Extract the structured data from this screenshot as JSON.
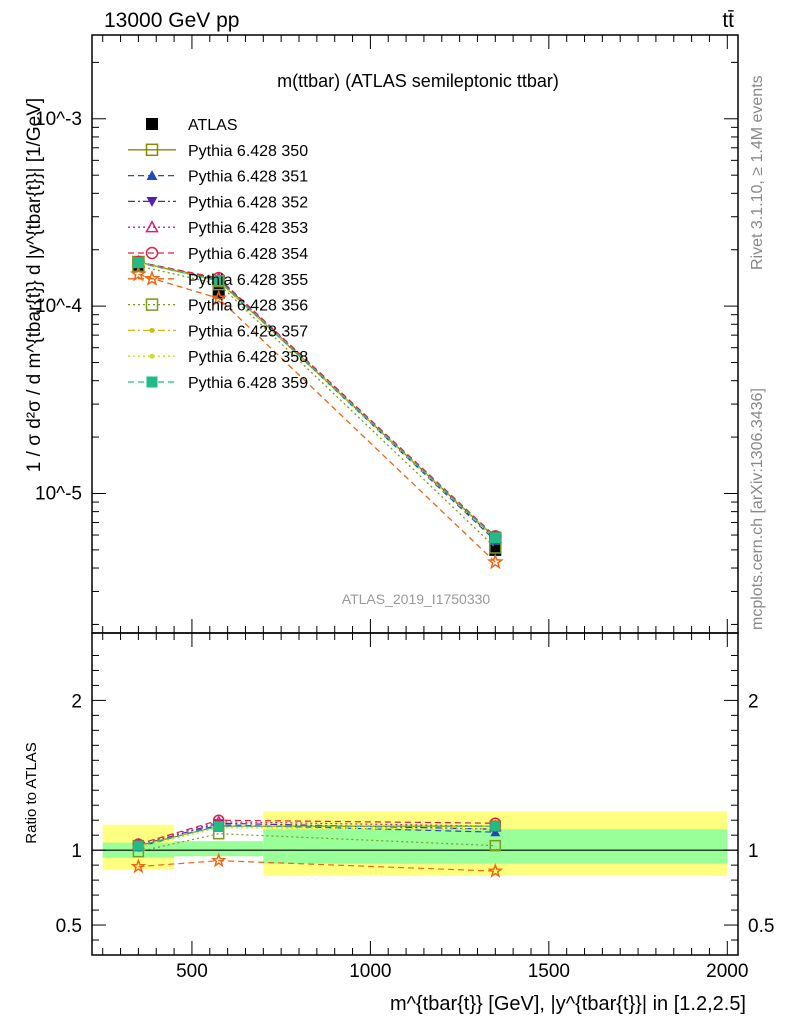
{
  "header": {
    "energy_label": "13000 GeV pp",
    "process_label": "tt̄"
  },
  "side_labels": {
    "rivet": "Rivet 3.1.10, ≥ 1.4M events",
    "mcplots": "mcplots.cern.ch [arXiv:1306.3436]"
  },
  "colors": {
    "ratio_band_inner": "#99ff99",
    "ratio_band_outer": "#ffff80",
    "watermark": "#999999"
  },
  "chart_data": [
    {
      "type": "line",
      "panel": "main",
      "title": "m(ttbar) (ATLAS semileptonic ttbar)",
      "watermark": "ATLAS_2019_I1750330",
      "ylabel": "1 / σ d²σ / d m^{tbar{t}} d |y^{tbar{t}}| [1/GeV]",
      "yscale": "log",
      "ylim": [
        1.8e-06,
        0.0028
      ],
      "xlim": [
        220,
        2030
      ],
      "y_tick_labels": [
        "10^-5",
        "10^-4",
        "10^-3"
      ],
      "legend_position": "top-left",
      "x": [
        350,
        575,
        1350
      ],
      "series": [
        {
          "name": "ATLAS",
          "color": "#000000",
          "marker": "filled-square",
          "line": "none",
          "values": [
            0.000166,
            0.000118,
            5e-06
          ]
        },
        {
          "name": "Pythia 6.428 350",
          "color": "#8a8a00",
          "marker": "open-square",
          "line": "solid",
          "values": [
            0.000172,
            0.000136,
            5.8e-06
          ]
        },
        {
          "name": "Pythia 6.428 351",
          "color": "#1f4fb4",
          "marker": "filled-triangle-up",
          "line": "dashed",
          "values": [
            0.00017,
            0.000138,
            5.6e-06
          ]
        },
        {
          "name": "Pythia 6.428 352",
          "color": "#5522aa",
          "marker": "filled-triangle-down",
          "line": "dashdot",
          "values": [
            0.000171,
            0.000139,
            5.7e-06
          ]
        },
        {
          "name": "Pythia 6.428 353",
          "color": "#cc2288",
          "marker": "open-triangle-up",
          "line": "dotted",
          "values": [
            0.000172,
            0.00014,
            5.8e-06
          ]
        },
        {
          "name": "Pythia 6.428 354",
          "color": "#dd2244",
          "marker": "open-circle",
          "line": "dashed",
          "values": [
            0.000172,
            0.000141,
            5.9e-06
          ]
        },
        {
          "name": "Pythia 6.428 355",
          "color": "#ee6611",
          "marker": "open-star",
          "line": "dashed",
          "values": [
            0.000148,
            0.00011,
            4.3e-06
          ]
        },
        {
          "name": "Pythia 6.428 356",
          "color": "#7a9a22",
          "marker": "open-square",
          "line": "dotted",
          "values": [
            0.000164,
            0.000131,
            5.15e-06
          ]
        },
        {
          "name": "Pythia 6.428 357",
          "color": "#ccbb11",
          "marker": "dot",
          "line": "dashdot",
          "values": [
            0.000172,
            0.000137,
            5.8e-06
          ]
        },
        {
          "name": "Pythia 6.428 358",
          "color": "#ccdd22",
          "marker": "dot",
          "line": "dotted",
          "values": [
            0.00017,
            0.000136,
            5.7e-06
          ]
        },
        {
          "name": "Pythia 6.428 359",
          "color": "#22bb88",
          "marker": "filled-square",
          "line": "dashed",
          "values": [
            0.000171,
            0.000137,
            5.8e-06
          ]
        }
      ]
    },
    {
      "type": "line",
      "panel": "ratio",
      "ylabel": "Ratio to ATLAS",
      "xlabel": "m^{tbar{t}} [GeV], |y^{tbar{t}}| in [1.2,2.5]",
      "ylim": [
        0.3,
        2.45
      ],
      "xlim": [
        220,
        2030
      ],
      "y_ticks": [
        0.5,
        1,
        2
      ],
      "y_tick_labels": [
        "0.5",
        "1",
        "2"
      ],
      "x_ticks": [
        500,
        1000,
        1500,
        2000
      ],
      "x_tick_labels": [
        "500",
        "1000",
        "1500",
        "2000"
      ],
      "reference_line": 1,
      "bins": [
        {
          "x_low": 250,
          "x_high": 450,
          "inner": [
            0.95,
            1.05
          ],
          "outer": [
            0.87,
            1.17
          ]
        },
        {
          "x_low": 450,
          "x_high": 700,
          "inner": [
            0.96,
            1.06
          ],
          "outer": [
            0.96,
            1.06
          ]
        },
        {
          "x_low": 700,
          "x_high": 2000,
          "inner": [
            0.91,
            1.14
          ],
          "outer": [
            0.83,
            1.26
          ]
        }
      ],
      "x": [
        350,
        575,
        1350
      ],
      "series": [
        {
          "name": "Pythia 6.428 350",
          "values": [
            1.03,
            1.16,
            1.16
          ]
        },
        {
          "name": "Pythia 6.428 351",
          "values": [
            1.02,
            1.17,
            1.12
          ]
        },
        {
          "name": "Pythia 6.428 352",
          "values": [
            1.03,
            1.18,
            1.14
          ]
        },
        {
          "name": "Pythia 6.428 353",
          "values": [
            1.04,
            1.19,
            1.16
          ]
        },
        {
          "name": "Pythia 6.428 354",
          "values": [
            1.04,
            1.2,
            1.18
          ]
        },
        {
          "name": "Pythia 6.428 355",
          "values": [
            0.89,
            0.93,
            0.86
          ]
        },
        {
          "name": "Pythia 6.428 356",
          "values": [
            0.99,
            1.11,
            1.03
          ]
        },
        {
          "name": "Pythia 6.428 357",
          "values": [
            1.03,
            1.16,
            1.16
          ]
        },
        {
          "name": "Pythia 6.428 358",
          "values": [
            1.02,
            1.15,
            1.14
          ]
        },
        {
          "name": "Pythia 6.428 359",
          "values": [
            1.03,
            1.16,
            1.16
          ]
        }
      ]
    }
  ]
}
